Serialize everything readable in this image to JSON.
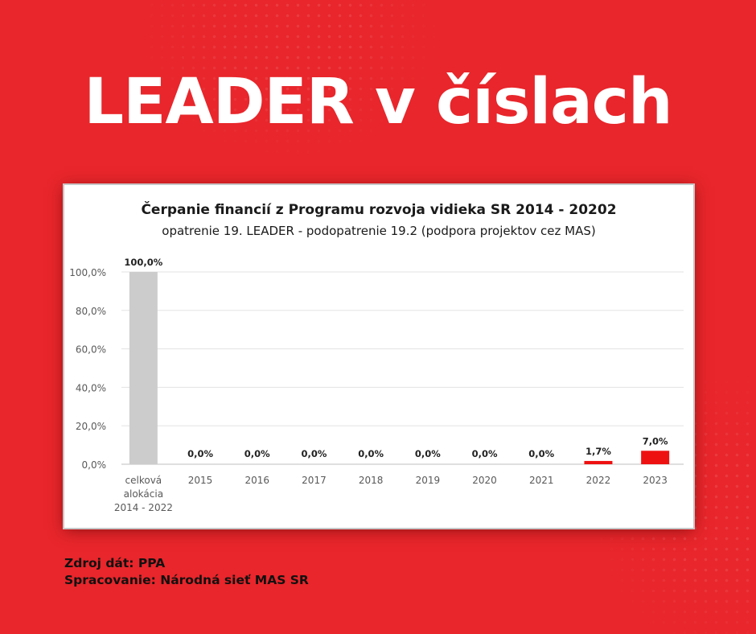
{
  "headline": "LEADER v číslach",
  "colors": {
    "background": "#e8262b",
    "bar_allocation": "#cccccc",
    "bar_drawn": "#ee1111",
    "text_dark": "#111111"
  },
  "chart_data": {
    "type": "bar",
    "title": "Čerpanie financií z Programu rozvoja vidieka SR 2014 - 20202",
    "subtitle": "opatrenie 19. LEADER - podopatrenie 19.2 (podpora projektov cez MAS)",
    "categories": [
      [
        "celková",
        "alokácia",
        "2014 - 2022"
      ],
      [
        "2015"
      ],
      [
        "2016"
      ],
      [
        "2017"
      ],
      [
        "2018"
      ],
      [
        "2019"
      ],
      [
        "2020"
      ],
      [
        "2021"
      ],
      [
        "2022"
      ],
      [
        "2023"
      ]
    ],
    "values": [
      100.0,
      0.0,
      0.0,
      0.0,
      0.0,
      0.0,
      0.0,
      0.0,
      1.7,
      7.0
    ],
    "value_labels": [
      "100,0%",
      "0,0%",
      "0,0%",
      "0,0%",
      "0,0%",
      "0,0%",
      "0,0%",
      "0,0%",
      "1,7%",
      "7,0%"
    ],
    "bar_colors": [
      "#cccccc",
      "#ee1111",
      "#ee1111",
      "#ee1111",
      "#ee1111",
      "#ee1111",
      "#ee1111",
      "#ee1111",
      "#ee1111",
      "#ee1111"
    ],
    "y_ticks": [
      0,
      20,
      40,
      60,
      80,
      100
    ],
    "y_tick_labels": [
      "0,0%",
      "20,0%",
      "40,0%",
      "60,0%",
      "80,0%",
      "100,0%"
    ],
    "ylim": [
      0,
      100
    ],
    "grid": true,
    "legend": "none"
  },
  "footer": {
    "source_line": "Zdroj dát: PPA",
    "processing_line": "Spracovanie: Národná sieť MAS SR"
  }
}
